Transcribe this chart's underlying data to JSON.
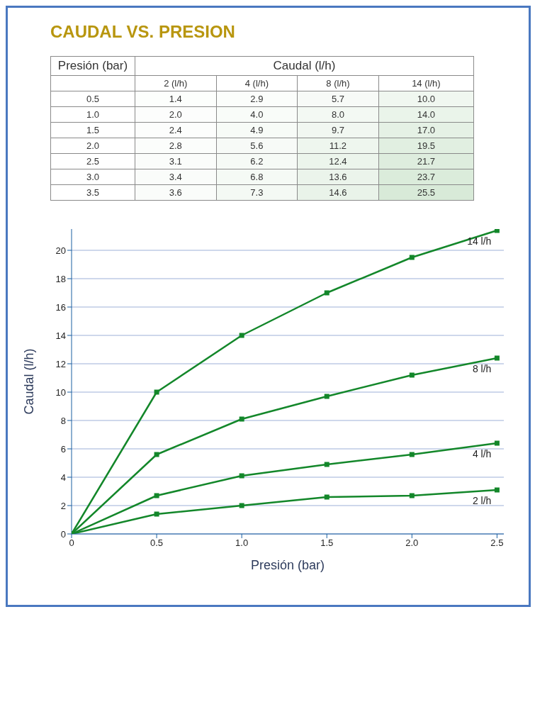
{
  "chart_data": [
    {
      "type": "heatmap",
      "title": "CAUDAL VS. PRESION",
      "ylabel": "Presión (bar)",
      "xlabel": "Caudal (l/h)",
      "categories": [
        "2 (l/h)",
        "4 (l/h)",
        "8 (l/h)",
        "14 (l/h)"
      ],
      "y_categories": [
        "0.5",
        "1.0",
        "1.5",
        "2.0",
        "2.5",
        "3.0",
        "3.5"
      ],
      "cells": [
        [
          1.4,
          2.9,
          5.7,
          10.0
        ],
        [
          2.0,
          4.0,
          8.0,
          14.0
        ],
        [
          2.4,
          4.9,
          9.7,
          17.0
        ],
        [
          2.8,
          5.6,
          11.2,
          19.5
        ],
        [
          3.1,
          6.2,
          12.4,
          21.7
        ],
        [
          3.4,
          6.8,
          13.6,
          23.7
        ],
        [
          3.6,
          7.3,
          14.6,
          25.5
        ]
      ],
      "cell_labels": [
        [
          "1.4",
          "2.9",
          "5.7",
          "10.0"
        ],
        [
          "2.0",
          "4.0",
          "8.0",
          "14.0"
        ],
        [
          "2.4",
          "4.9",
          "9.7",
          "17.0"
        ],
        [
          "2.8",
          "5.6",
          "11.2",
          "19.5"
        ],
        [
          "3.1",
          "6.2",
          "12.4",
          "21.7"
        ],
        [
          "3.4",
          "6.8",
          "13.6",
          "23.7"
        ],
        [
          "3.6",
          "7.3",
          "14.6",
          "25.5"
        ]
      ]
    },
    {
      "type": "line",
      "xlabel": "Presión (bar)",
      "ylabel": "Caudal (l/h)",
      "x": [
        0,
        0.5,
        1.0,
        1.5,
        2.0,
        2.5
      ],
      "xlim": [
        0,
        2.54
      ],
      "xticks": [
        0,
        0.5,
        {
          "value": 1,
          "label": "1.0"
        },
        1.5,
        {
          "value": 2,
          "label": "2.0"
        },
        2.5
      ],
      "ylim": [
        0,
        21.5
      ],
      "yticks": [
        0,
        2,
        4,
        6,
        8,
        10,
        12,
        14,
        16,
        18,
        20
      ],
      "grid": "y",
      "marker": "square",
      "line_style": "solid",
      "legend": false,
      "series": [
        {
          "name": "2 l/h",
          "color": "#13872a",
          "values": [
            0,
            1.4,
            2.0,
            2.6,
            2.7,
            3.1
          ]
        },
        {
          "name": "4 l/h",
          "color": "#13872a",
          "values": [
            0,
            2.7,
            4.1,
            4.9,
            5.6,
            6.4
          ]
        },
        {
          "name": "8 l/h",
          "color": "#13872a",
          "values": [
            0,
            5.6,
            8.1,
            9.7,
            11.2,
            12.4
          ]
        },
        {
          "name": "14 l/h",
          "color": "#13872a",
          "values": [
            0,
            10,
            14,
            17,
            19.5,
            21.4
          ]
        }
      ]
    }
  ]
}
